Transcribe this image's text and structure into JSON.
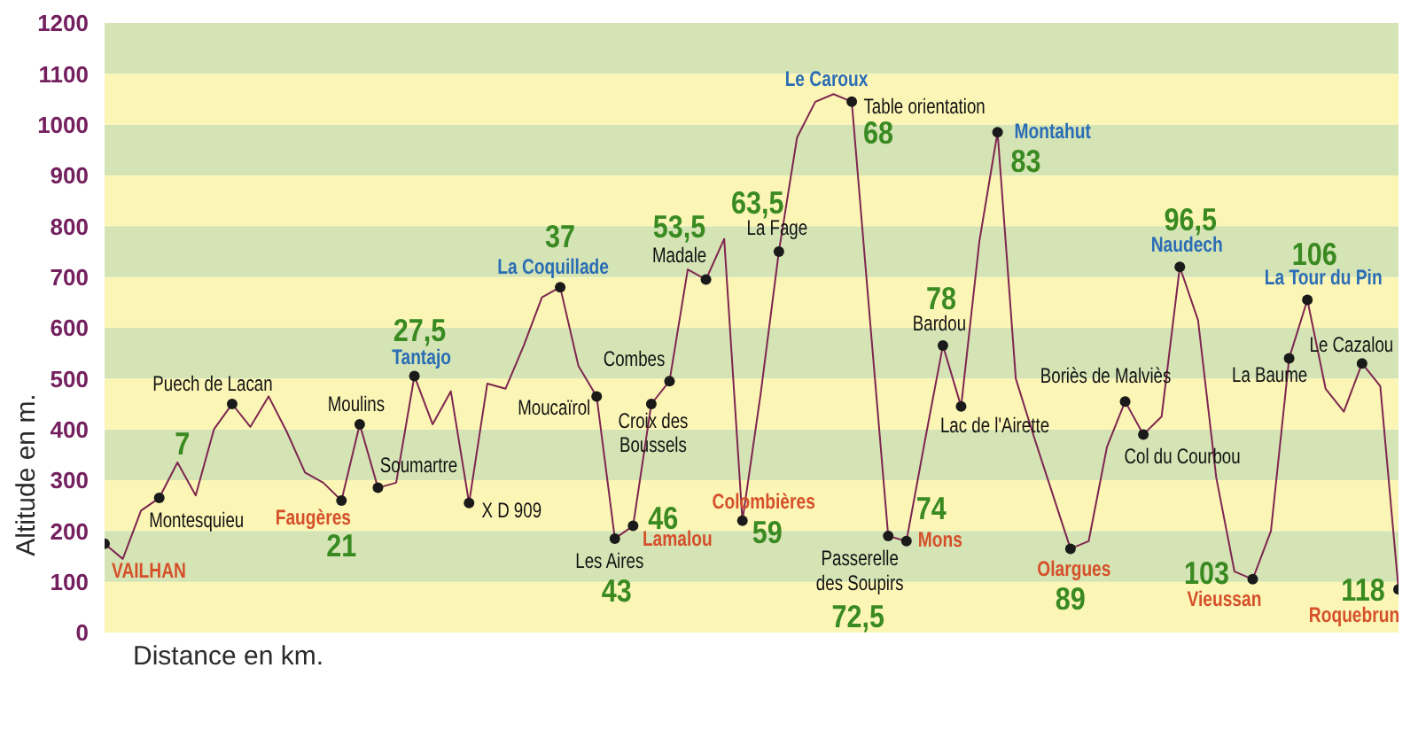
{
  "chart_data": {
    "type": "line",
    "xlabel": "Distance en km.",
    "ylabel": "Altitude en m.",
    "categories": [
      null,
      null,
      null,
      null,
      null,
      null,
      null,
      null,
      null,
      null,
      null,
      null,
      null,
      null,
      null,
      null,
      null,
      null,
      null,
      null,
      null,
      null,
      null,
      null,
      null,
      null,
      null,
      null,
      null,
      null,
      null,
      null,
      null,
      null,
      null,
      null,
      null,
      null,
      null,
      null,
      null,
      null,
      null,
      null,
      null,
      null,
      null,
      null,
      null,
      null,
      null,
      null,
      null,
      null,
      null,
      null,
      null,
      null,
      null,
      null,
      null,
      null,
      null,
      null,
      null,
      null,
      null,
      null,
      null,
      null,
      null,
      null
    ],
    "series": [
      {
        "color": "#7e2650",
        "marker": "none",
        "values": [
          175,
          145,
          240,
          265,
          335,
          270,
          400,
          450,
          405,
          465,
          395,
          315,
          295,
          260,
          410,
          285,
          295,
          505,
          410,
          475,
          255,
          490,
          480,
          565,
          660,
          680,
          525,
          465,
          185,
          210,
          450,
          495,
          715,
          695,
          775,
          220,
          470,
          750,
          975,
          1045,
          1060,
          1045,
          615,
          190,
          180,
          375,
          565,
          445,
          770,
          985,
          500,
          385,
          275,
          165,
          180,
          365,
          455,
          390,
          425,
          720,
          615,
          305,
          120,
          105,
          200,
          540,
          655,
          480,
          435,
          530,
          485,
          85
        ]
      },
      {
        "type": "scatter",
        "color": "#1a1a1a",
        "marker": "circle",
        "values": [
          175,
          null,
          null,
          265,
          null,
          null,
          null,
          450,
          null,
          null,
          null,
          null,
          null,
          260,
          410,
          285,
          null,
          505,
          null,
          null,
          255,
          null,
          null,
          null,
          null,
          680,
          null,
          465,
          185,
          210,
          450,
          495,
          null,
          695,
          null,
          220,
          null,
          750,
          null,
          null,
          null,
          1045,
          null,
          190,
          180,
          null,
          565,
          445,
          null,
          985,
          null,
          null,
          null,
          165,
          null,
          null,
          455,
          390,
          null,
          720,
          null,
          null,
          null,
          105,
          null,
          540,
          655,
          null,
          null,
          530,
          null,
          85
        ]
      }
    ],
    "ylim": [
      0,
      1200
    ],
    "yticks": [
      0,
      100,
      200,
      300,
      400,
      500,
      600,
      700,
      800,
      900,
      1000,
      1100,
      1200
    ],
    "tick_labels": "y",
    "bands": [
      {
        "axis": "y",
        "from": 0,
        "to": 100,
        "color": "#fcf6b6"
      },
      {
        "axis": "y",
        "from": 100,
        "to": 200,
        "color": "#d5e4b5"
      },
      {
        "axis": "y",
        "from": 200,
        "to": 300,
        "color": "#fcf6b6"
      },
      {
        "axis": "y",
        "from": 300,
        "to": 400,
        "color": "#d5e4b5"
      },
      {
        "axis": "y",
        "from": 400,
        "to": 500,
        "color": "#fcf6b6"
      },
      {
        "axis": "y",
        "from": 500,
        "to": 600,
        "color": "#d5e4b5"
      },
      {
        "axis": "y",
        "from": 600,
        "to": 700,
        "color": "#fcf6b6"
      },
      {
        "axis": "y",
        "from": 700,
        "to": 800,
        "color": "#d5e4b5"
      },
      {
        "axis": "y",
        "from": 800,
        "to": 900,
        "color": "#fcf6b6"
      },
      {
        "axis": "y",
        "from": 900,
        "to": 1000,
        "color": "#d5e4b5"
      },
      {
        "axis": "y",
        "from": 1000,
        "to": 1100,
        "color": "#fcf6b6"
      },
      {
        "axis": "y",
        "from": 1100,
        "to": 1200,
        "color": "#d5e4b5"
      }
    ],
    "annotations": [
      "VAILHAN",
      "Montesquieu",
      "7",
      "Puech de Lacan",
      "Faugères",
      "21",
      "Moulins",
      "Soumartre",
      "Tantajo",
      "27,5",
      "X D 909",
      "La Coquillade",
      "37",
      "Moucaïrol",
      "Les Aires",
      "43",
      "Lamalou",
      "46",
      "Croix des Boussels",
      "Combes",
      "Madale",
      "53,5",
      "Colombières",
      "59",
      "La Fage",
      "63,5",
      "Le Caroux",
      "Table orientation",
      "68",
      "Passerelle des Soupirs",
      "72,5",
      "Mons",
      "74",
      "Bardou",
      "78",
      "Lac de l'Airette",
      "Montahut",
      "83",
      "Olargues",
      "89",
      "Boriès de Malviès",
      "Col du Courbou",
      "Naudech",
      "96,5",
      "Vieussan",
      "103",
      "La Baume",
      "La Tour du Pin",
      "106",
      "Le Cazalou",
      "Roquebrun",
      "118"
    ]
  }
}
